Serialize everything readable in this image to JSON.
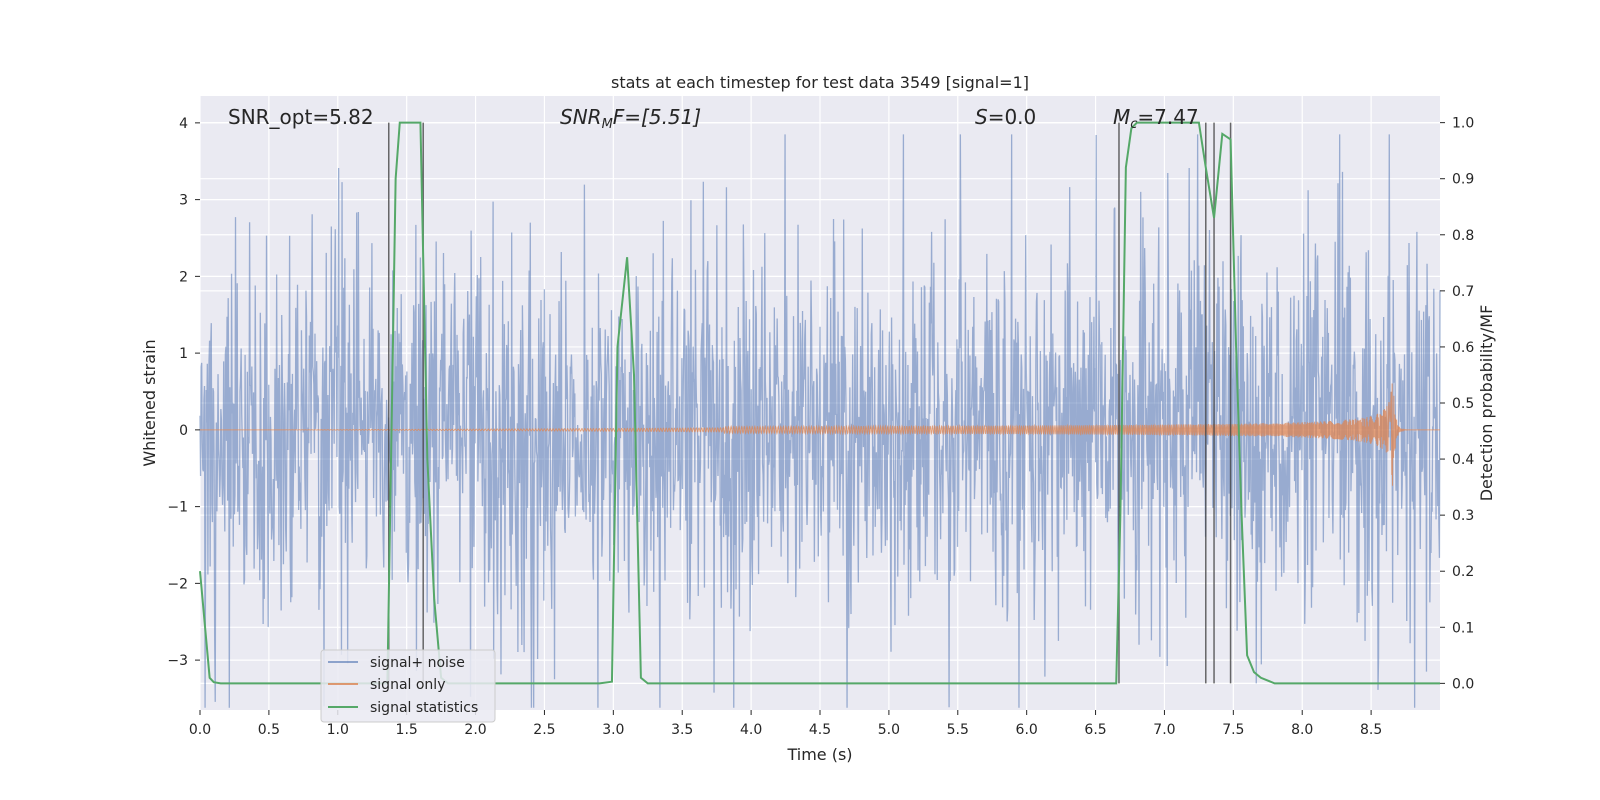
{
  "chart_data": {
    "type": "line",
    "title": "stats at each timestep for test data 3549 [signal=1]",
    "xlabel": "Time (s)",
    "ylabel_left": "Whitened strain",
    "ylabel_right": "Detection probability/MF",
    "xlim": [
      0,
      9.0
    ],
    "ylim_left": [
      -3.65,
      4.35
    ],
    "ylim_right": [
      -0.0475,
      1.0475
    ],
    "x_ticks": [
      "0.0",
      "0.5",
      "1.0",
      "1.5",
      "2.0",
      "2.5",
      "3.0",
      "3.5",
      "4.0",
      "4.5",
      "5.0",
      "5.5",
      "6.0",
      "6.5",
      "7.0",
      "7.5",
      "8.0",
      "8.5"
    ],
    "y_ticks_left": [
      "4",
      "3",
      "2",
      "1",
      "0",
      "−1",
      "−2",
      "−3"
    ],
    "y_ticks_left_values": [
      4,
      3,
      2,
      1,
      0,
      -1,
      -2,
      -3
    ],
    "y_ticks_right": [
      "1.0",
      "0.9",
      "0.8",
      "0.7",
      "0.6",
      "0.5",
      "0.4",
      "0.3",
      "0.2",
      "0.1",
      "0.0"
    ],
    "y_ticks_right_values": [
      1.0,
      0.9,
      0.8,
      0.7,
      0.6,
      0.5,
      0.4,
      0.3,
      0.2,
      0.1,
      0.0
    ],
    "grid": true,
    "annotations": {
      "snr_opt": "SNR_opt=5.82",
      "snr_mf_main": "SNR",
      "snr_mf_sub": "M",
      "snr_mf_rest": "F=[5.51]",
      "s_var": "S",
      "s_rest": "=0.0",
      "mc_var": "M",
      "mc_sub": "c",
      "mc_rest": "=7.47"
    },
    "vertical_lines": [
      1.37,
      1.62,
      6.67,
      7.3,
      7.36,
      7.48
    ],
    "series": [
      {
        "name": "signal+ noise",
        "color": "#4c72b0",
        "style": "noisy strain, amplitude ~±2 with spikes to ~±3.8"
      },
      {
        "name": "signal only",
        "color": "#dd8452",
        "style": "chirp growing from 0 near t=4.5 to ±0.75 at t≈8.65 then ringdown"
      },
      {
        "name": "signal statistics",
        "color": "#55a868",
        "x": [
          0.0,
          0.07,
          0.1,
          0.15,
          1.36,
          1.38,
          1.42,
          1.45,
          1.5,
          1.6,
          1.65,
          1.7,
          1.75,
          1.8,
          2.9,
          2.99,
          3.03,
          3.1,
          3.15,
          3.2,
          3.25,
          3.3,
          6.65,
          6.68,
          6.72,
          6.76,
          6.8,
          7.0,
          7.25,
          7.3,
          7.36,
          7.42,
          7.48,
          7.52,
          7.56,
          7.6,
          7.65,
          7.7,
          7.8,
          9.0
        ],
        "y": [
          0.2,
          0.01,
          0.002,
          0.0,
          0.0,
          0.3,
          0.9,
          1.0,
          1.0,
          1.0,
          0.4,
          0.15,
          0.01,
          0.0,
          0.0,
          0.003,
          0.6,
          0.76,
          0.55,
          0.01,
          0.0,
          0.0,
          0.0,
          0.3,
          0.92,
          0.99,
          1.0,
          1.0,
          1.0,
          0.92,
          0.83,
          0.98,
          0.97,
          0.6,
          0.3,
          0.05,
          0.02,
          0.01,
          0.0,
          0.0
        ]
      }
    ],
    "legend": {
      "placement": "lower-left",
      "entries": [
        "signal+ noise",
        "signal only",
        "signal statistics"
      ],
      "colors": [
        "#4c72b0",
        "#dd8452",
        "#55a868"
      ]
    }
  }
}
